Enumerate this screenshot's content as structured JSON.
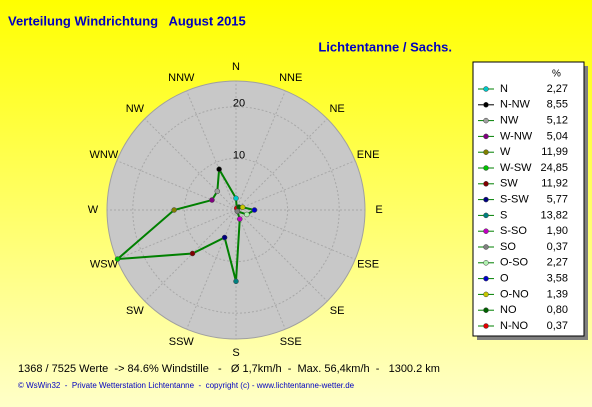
{
  "chart_data": {
    "type": "radar",
    "title": "Verteilung Windrichtung   August 2015",
    "subtitle": "Lichtentanne / Sachs.",
    "categories": [
      "N",
      "NNE",
      "NE",
      "ENE",
      "E",
      "ESE",
      "SE",
      "SSE",
      "S",
      "SSW",
      "SW",
      "WSW",
      "W",
      "WNW",
      "NW",
      "NNW"
    ],
    "values": [
      2.27,
      0.37,
      0.8,
      1.39,
      3.58,
      2.27,
      0.37,
      1.9,
      13.82,
      5.77,
      11.92,
      24.85,
      11.99,
      5.04,
      5.12,
      8.55
    ],
    "value_labels": [
      "2,27",
      "0,37",
      "0,80",
      "1,39",
      "3,58",
      "2,27",
      "0,37",
      "1,90",
      "13,82",
      "5,77",
      "11,92",
      "24,85",
      "11,99",
      "5,04",
      "5,12",
      "8,55"
    ],
    "legend_names": [
      "N",
      "N-NO",
      "NO",
      "O-NO",
      "O",
      "O-SO",
      "SO",
      "S-SO",
      "S",
      "S-SW",
      "SW",
      "W-SW",
      "W",
      "W-NW",
      "NW",
      "N-NW"
    ],
    "marker_colors": [
      "#00c8c8",
      "#e00000",
      "#006000",
      "#c8c800",
      "#0000c8",
      "#b0f0b0",
      "#808080",
      "#c000c0",
      "#008080",
      "#000080",
      "#800000",
      "#00c000",
      "#808000",
      "#800080",
      "#a0a0a0",
      "#000000"
    ],
    "line_color": "#008000",
    "legend_title": "%",
    "rlim": [
      0,
      25
    ],
    "rticks": [
      10,
      20
    ],
    "footer": "1368 / 7525 Werte  -> 84.6% Windstille   -   Ø 1,7km/h  -  Max. 56,4km/h  -   1300.2 km",
    "copyright": "© WsWin32  -  Private Wetterstation Lichtentanne  -  copyright (c) - www.lichtentanne-wetter.de"
  }
}
